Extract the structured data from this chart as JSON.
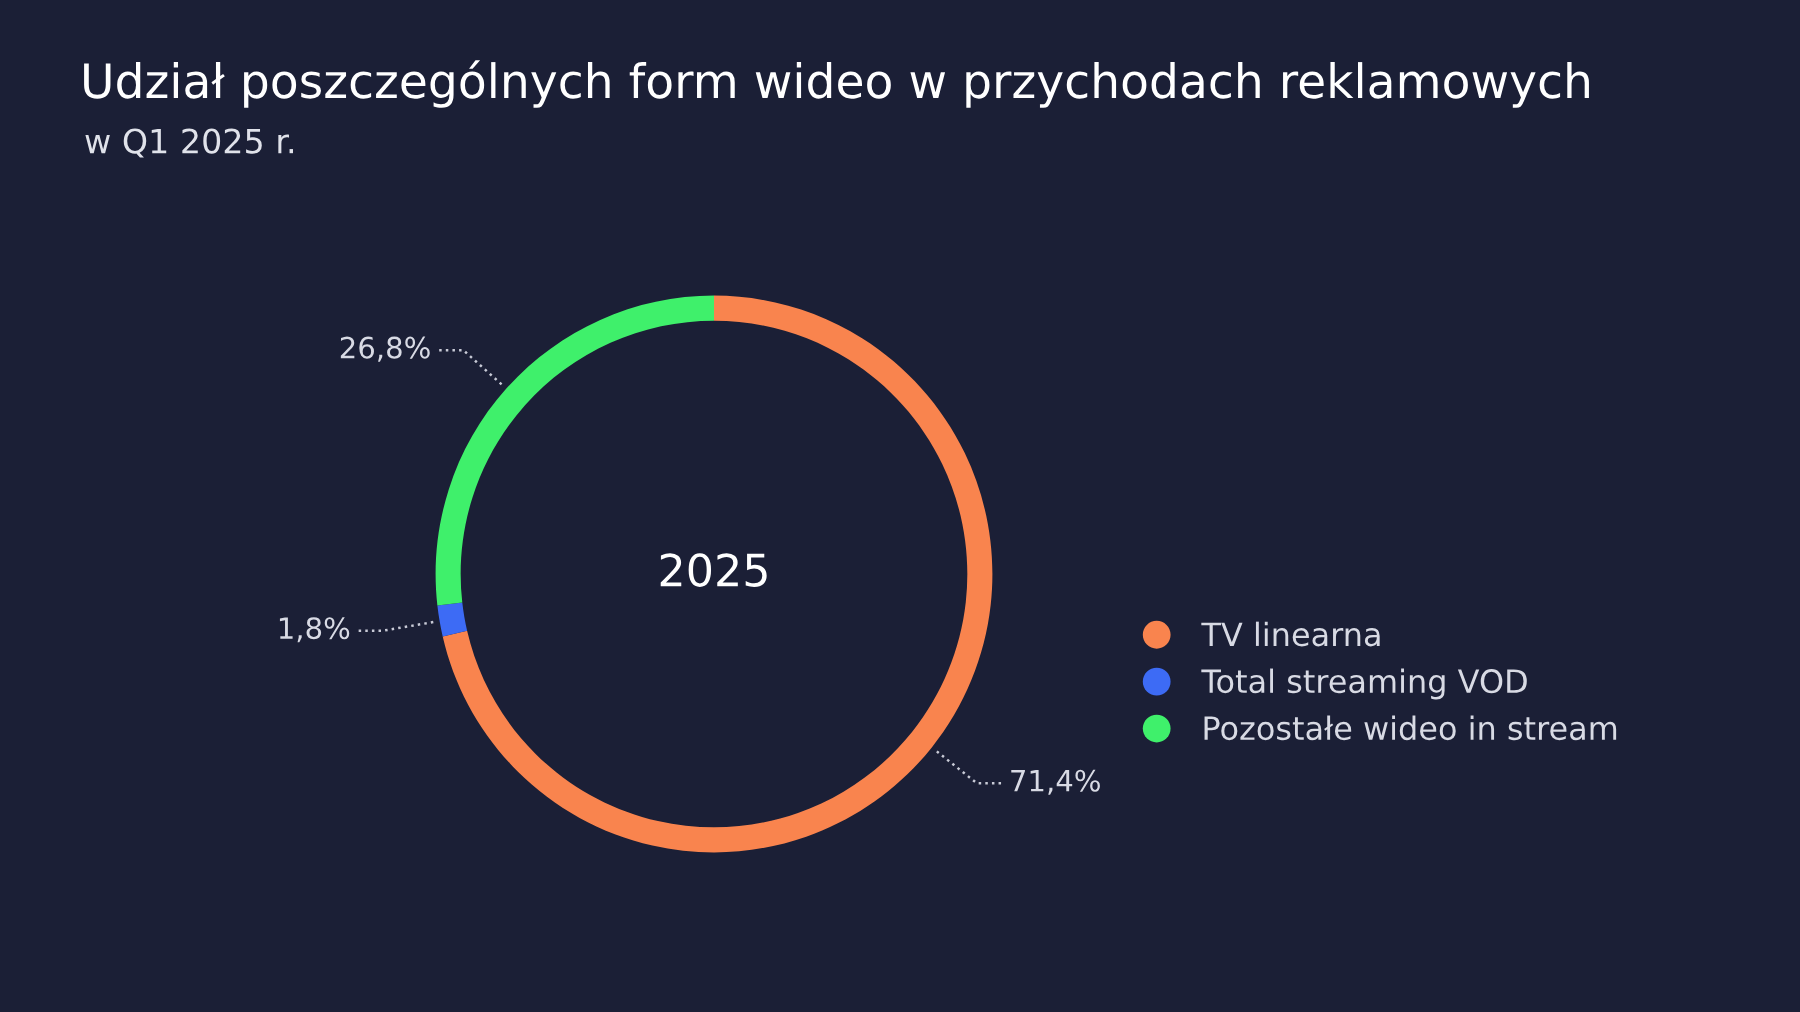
{
  "chart_data": {
    "type": "donut",
    "title": "Udział poszczególnych form wideo w przychodach reklamowych",
    "subtitle": "w Q1 2025 r.",
    "categories": [
      "TV linearna",
      "Total streaming VOD",
      "Pozostałe wideo in stream"
    ],
    "values": [
      71.4,
      1.8,
      26.8
    ],
    "value_labels": [
      "71,4%",
      "1,8%",
      "26,8%"
    ],
    "colors": [
      "#f9844e",
      "#3d6bf5",
      "#3ff06b"
    ],
    "annotations": [
      "2025"
    ],
    "legend": "right"
  }
}
